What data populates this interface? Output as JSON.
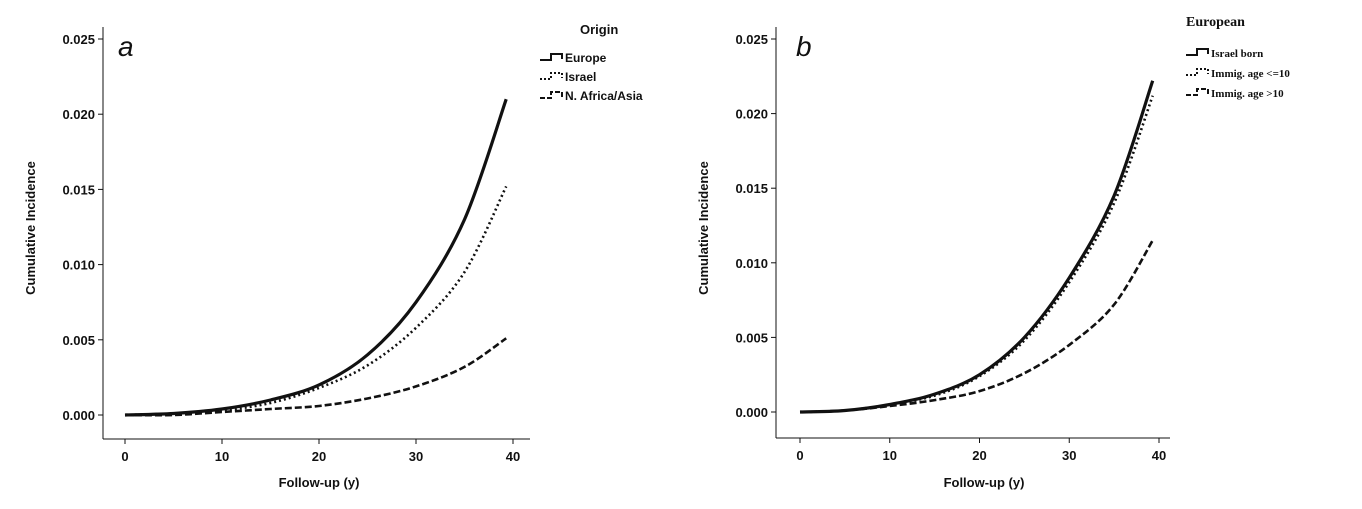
{
  "chart_data": [
    {
      "type": "line",
      "panel_label": "a",
      "xlabel": "Follow-up (y)",
      "ylabel": "Cumulative Incidence",
      "xlim": [
        0,
        40
      ],
      "ylim": [
        0,
        0.025
      ],
      "xticks": [
        "0",
        "10",
        "20",
        "30",
        "40"
      ],
      "yticks": [
        "0.000",
        "0.005",
        "0.010",
        "0.015",
        "0.020",
        "0.025"
      ],
      "grid": false,
      "legend_position": "right",
      "legend_title": "Origin",
      "x": [
        0,
        5,
        10,
        15,
        20,
        25,
        30,
        35,
        39.3
      ],
      "series": [
        {
          "name": "Europe",
          "style": "solid",
          "values": [
            0,
            0.0001,
            0.0004,
            0.001,
            0.002,
            0.004,
            0.0075,
            0.013,
            0.021
          ]
        },
        {
          "name": "Israel",
          "style": "dotted",
          "values": [
            0,
            0.0001,
            0.0003,
            0.0008,
            0.0018,
            0.0033,
            0.0058,
            0.0095,
            0.0152
          ]
        },
        {
          "name": "N. Africa/Asia",
          "style": "dashed",
          "values": [
            0,
            0.0,
            0.0002,
            0.0004,
            0.0006,
            0.0011,
            0.0019,
            0.0032,
            0.0051
          ]
        }
      ]
    },
    {
      "type": "line",
      "panel_label": "b",
      "xlabel": "Follow-up (y)",
      "ylabel": "Cumulative Incidence",
      "xlim": [
        0,
        40
      ],
      "ylim": [
        0,
        0.025
      ],
      "xticks": [
        "0",
        "10",
        "20",
        "30",
        "40"
      ],
      "yticks": [
        "0.000",
        "0.005",
        "0.010",
        "0.015",
        "0.020",
        "0.025"
      ],
      "grid": false,
      "legend_position": "right",
      "legend_title": "European",
      "x": [
        0,
        5,
        10,
        15,
        20,
        25,
        30,
        35,
        39.3
      ],
      "series": [
        {
          "name": "Israel born",
          "style": "solid",
          "values": [
            0,
            0.0001,
            0.0005,
            0.0012,
            0.0025,
            0.005,
            0.009,
            0.0145,
            0.0222
          ]
        },
        {
          "name": "Immig. age <=10",
          "style": "dotted",
          "values": [
            0,
            0.0001,
            0.0005,
            0.0011,
            0.0024,
            0.0048,
            0.0087,
            0.014,
            0.0212
          ]
        },
        {
          "name": "Immig. age >10",
          "style": "dashed",
          "values": [
            0,
            0.0001,
            0.0004,
            0.0008,
            0.0014,
            0.0026,
            0.0045,
            0.0072,
            0.0115
          ]
        }
      ]
    }
  ]
}
